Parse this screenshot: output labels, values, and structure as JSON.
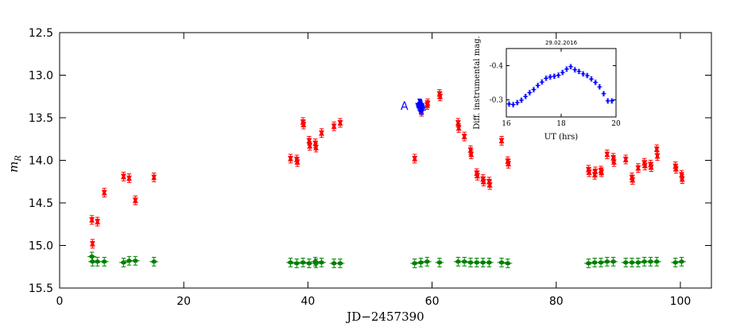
{
  "chart_data": [
    {
      "type": "scatter",
      "title": "",
      "xlabel": "JD−2457390",
      "ylabel": "m_R",
      "xlim": [
        0,
        105
      ],
      "ylim": [
        15.5,
        12.5
      ],
      "y_inverted": true,
      "grid": false,
      "x_ticks": [
        "0",
        "20",
        "40",
        "60",
        "80",
        "100"
      ],
      "y_ticks": [
        "12.5",
        "13.0",
        "13.5",
        "14.0",
        "14.5",
        "15.0",
        "15.5"
      ],
      "annotation": "A",
      "series": [
        {
          "color": "#ff0000",
          "marker": "triangle-up-down",
          "points": [
            [
              5.2,
              14.7
            ],
            [
              5.3,
              14.98
            ],
            [
              6.1,
              14.72
            ],
            [
              7.2,
              14.38
            ],
            [
              10.3,
              14.19
            ],
            [
              11.2,
              14.21
            ],
            [
              12.2,
              14.47
            ],
            [
              15.2,
              14.2
            ],
            [
              37.2,
              13.98
            ],
            [
              38.2,
              13.99
            ],
            [
              38.3,
              14.02
            ],
            [
              39.2,
              13.55
            ],
            [
              39.3,
              13.58
            ],
            [
              40.2,
              13.77
            ],
            [
              40.3,
              13.83
            ],
            [
              41.2,
              13.8
            ],
            [
              41.3,
              13.85
            ],
            [
              42.2,
              13.68
            ],
            [
              44.2,
              13.6
            ],
            [
              45.2,
              13.56
            ],
            [
              57.2,
              13.98
            ],
            [
              58.2,
              13.4
            ],
            [
              58.3,
              13.43
            ],
            [
              59.2,
              13.35
            ],
            [
              59.3,
              13.33
            ],
            [
              61.2,
              13.22
            ],
            [
              61.3,
              13.25
            ],
            [
              64.2,
              13.56
            ],
            [
              64.3,
              13.62
            ],
            [
              65.2,
              13.72
            ],
            [
              66.2,
              13.88
            ],
            [
              66.3,
              13.93
            ],
            [
              67.2,
              14.15
            ],
            [
              67.3,
              14.18
            ],
            [
              68.2,
              14.22
            ],
            [
              68.3,
              14.25
            ],
            [
              69.2,
              14.25
            ],
            [
              69.3,
              14.29
            ],
            [
              71.2,
              13.77
            ],
            [
              72.2,
              14.01
            ],
            [
              72.3,
              14.04
            ],
            [
              85.2,
              14.11
            ],
            [
              85.3,
              14.14
            ],
            [
              86.2,
              14.17
            ],
            [
              86.3,
              14.13
            ],
            [
              87.2,
              14.12
            ],
            [
              87.3,
              14.14
            ],
            [
              88.2,
              13.93
            ],
            [
              89.2,
              13.97
            ],
            [
              89.3,
              14.02
            ],
            [
              91.2,
              13.99
            ],
            [
              92.2,
              14.2
            ],
            [
              92.3,
              14.23
            ],
            [
              93.2,
              14.09
            ],
            [
              94.2,
              14.03
            ],
            [
              94.3,
              14.06
            ],
            [
              95.2,
              14.05
            ],
            [
              95.3,
              14.08
            ],
            [
              96.2,
              13.87
            ],
            [
              96.3,
              13.95
            ],
            [
              99.2,
              14.07
            ],
            [
              99.3,
              14.1
            ],
            [
              100.2,
              14.17
            ],
            [
              100.3,
              14.22
            ]
          ]
        },
        {
          "color": "#008000",
          "marker": "pentagon",
          "points": [
            [
              5.2,
              15.13
            ],
            [
              5.3,
              15.19
            ],
            [
              6.1,
              15.19
            ],
            [
              7.2,
              15.19
            ],
            [
              10.3,
              15.2
            ],
            [
              11.2,
              15.18
            ],
            [
              12.2,
              15.18
            ],
            [
              15.2,
              15.19
            ],
            [
              37.2,
              15.2
            ],
            [
              38.2,
              15.21
            ],
            [
              39.2,
              15.2
            ],
            [
              40.2,
              15.21
            ],
            [
              41.2,
              15.19
            ],
            [
              41.3,
              15.21
            ],
            [
              42.2,
              15.2
            ],
            [
              44.2,
              15.21
            ],
            [
              45.2,
              15.21
            ],
            [
              57.2,
              15.21
            ],
            [
              58.2,
              15.2
            ],
            [
              59.2,
              15.19
            ],
            [
              61.2,
              15.2
            ],
            [
              64.2,
              15.19
            ],
            [
              65.2,
              15.19
            ],
            [
              66.2,
              15.2
            ],
            [
              67.2,
              15.2
            ],
            [
              68.2,
              15.2
            ],
            [
              69.2,
              15.2
            ],
            [
              71.2,
              15.2
            ],
            [
              72.2,
              15.21
            ],
            [
              85.2,
              15.21
            ],
            [
              86.2,
              15.2
            ],
            [
              87.2,
              15.2
            ],
            [
              88.2,
              15.19
            ],
            [
              89.2,
              15.19
            ],
            [
              91.2,
              15.2
            ],
            [
              92.2,
              15.2
            ],
            [
              93.2,
              15.2
            ],
            [
              94.2,
              15.19
            ],
            [
              95.2,
              15.19
            ],
            [
              96.2,
              15.19
            ],
            [
              99.2,
              15.2
            ],
            [
              100.2,
              15.19
            ]
          ]
        },
        {
          "color": "#0000ff",
          "marker": "pentagon",
          "points": [
            [
              58.0,
              13.33
            ],
            [
              58.1,
              13.35
            ],
            [
              58.15,
              13.37
            ],
            [
              58.2,
              13.38
            ],
            [
              58.25,
              13.39
            ],
            [
              58.3,
              13.41
            ],
            [
              58.05,
              13.34
            ],
            [
              58.12,
              13.36
            ]
          ]
        }
      ]
    },
    {
      "type": "scatter",
      "title": "29.02.2016",
      "xlabel": "UT (hrs)",
      "ylabel": "Diff. instrumental mag.",
      "xlim": [
        16,
        20
      ],
      "ylim": [
        -0.25,
        -0.45
      ],
      "y_inverted": true,
      "x_ticks": [
        "16",
        "18",
        "20"
      ],
      "y_ticks": [
        "-0.4",
        "-0.3"
      ],
      "series": [
        {
          "color": "#0000ff",
          "marker": "circle",
          "points": [
            [
              16.1,
              -0.288
            ],
            [
              16.25,
              -0.286
            ],
            [
              16.4,
              -0.292
            ],
            [
              16.55,
              -0.299
            ],
            [
              16.7,
              -0.31
            ],
            [
              16.85,
              -0.321
            ],
            [
              17.0,
              -0.33
            ],
            [
              17.15,
              -0.342
            ],
            [
              17.3,
              -0.352
            ],
            [
              17.45,
              -0.363
            ],
            [
              17.6,
              -0.367
            ],
            [
              17.75,
              -0.369
            ],
            [
              17.9,
              -0.372
            ],
            [
              18.05,
              -0.38
            ],
            [
              18.2,
              -0.39
            ],
            [
              18.35,
              -0.397
            ],
            [
              18.5,
              -0.388
            ],
            [
              18.65,
              -0.383
            ],
            [
              18.8,
              -0.376
            ],
            [
              18.95,
              -0.371
            ],
            [
              19.1,
              -0.361
            ],
            [
              19.25,
              -0.351
            ],
            [
              19.4,
              -0.338
            ],
            [
              19.55,
              -0.318
            ],
            [
              19.7,
              -0.297
            ],
            [
              19.85,
              -0.297
            ]
          ]
        }
      ]
    }
  ]
}
